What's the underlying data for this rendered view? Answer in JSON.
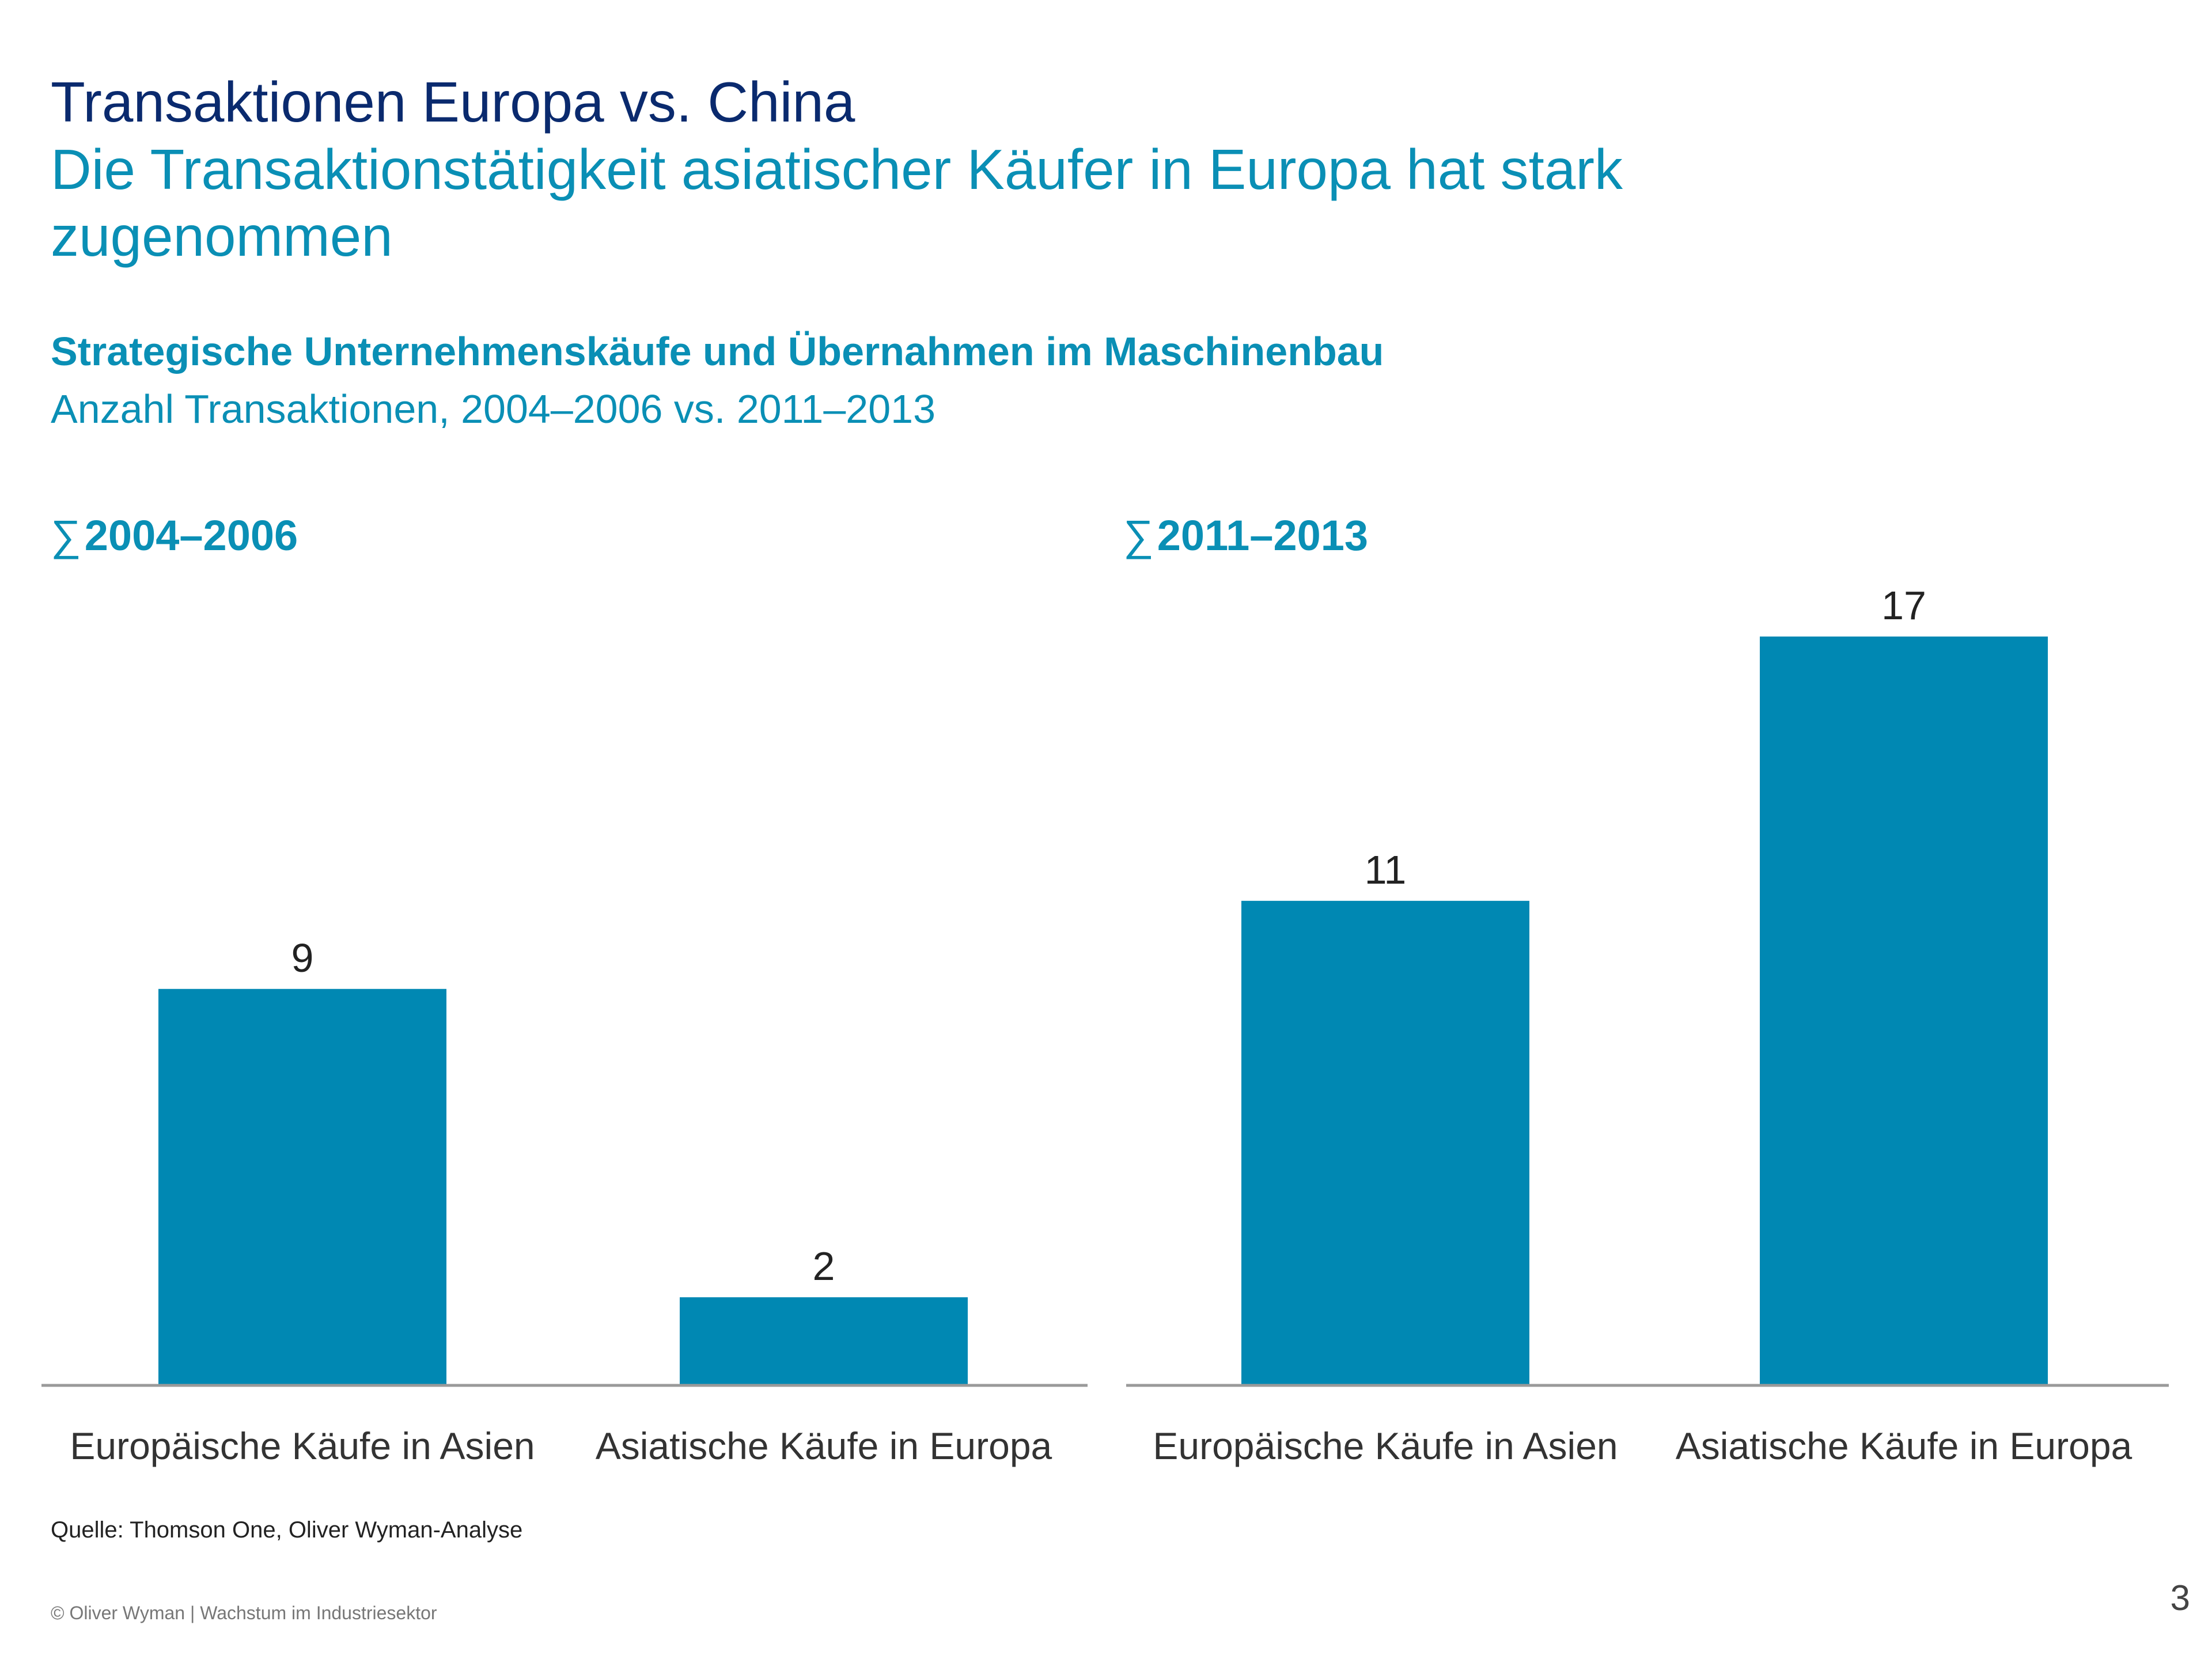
{
  "slide": {
    "title": "Transaktionen Europa vs. China",
    "subtitle": "Die Transaktionstätigkeit asiatischer Käufer in Europa hat stark zugenommen",
    "source": "Quelle: Thomson One, Oliver Wyman-Analyse",
    "footer": "© Oliver Wyman | Wachstum im Industriesektor",
    "page_number": "3",
    "accent_color": "#0a8fb5",
    "title_color": "#0a2a6e",
    "bar_color": "#0088b3"
  },
  "chart_data": {
    "type": "bar",
    "title": "Strategische Unternehmenskäufe und Übernahmen im Maschinenbau",
    "subtitle": "Anzahl Transaktionen, 2004–2006 vs. 2011–2013",
    "sigma_symbol": "∑",
    "ylim": [
      0,
      17
    ],
    "panels": [
      {
        "label": "2004–2006",
        "categories": [
          "Europäische Käufe in Asien",
          "Asiatische Käufe in Europa"
        ],
        "values": [
          9,
          2
        ]
      },
      {
        "label": "2011–2013",
        "categories": [
          "Europäische Käufe in Asien",
          "Asiatische Käufe in Europa"
        ],
        "values": [
          11,
          17
        ]
      }
    ]
  }
}
